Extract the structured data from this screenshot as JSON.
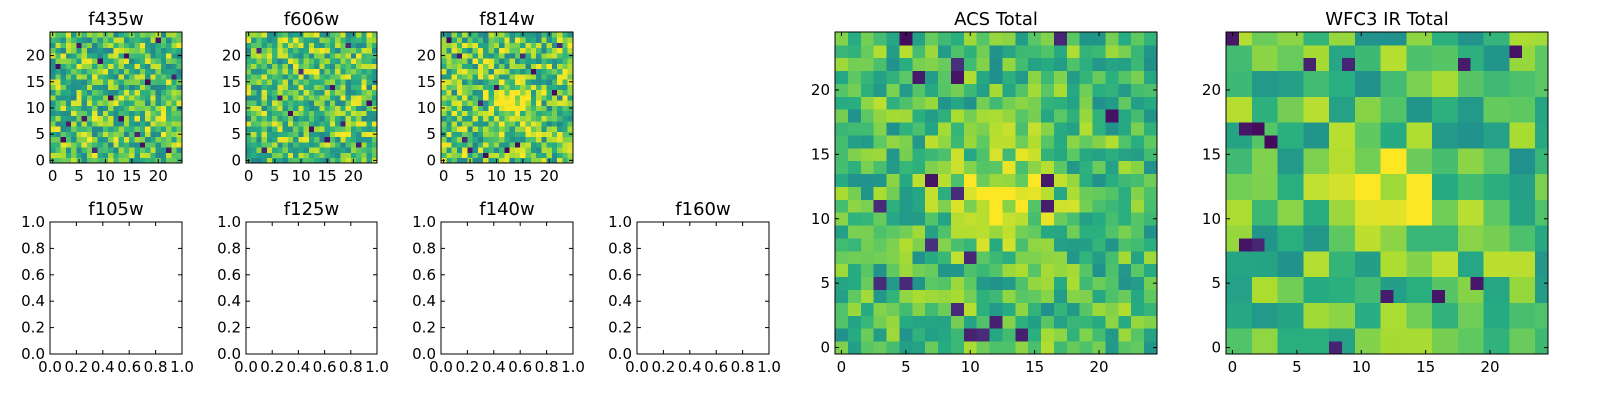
{
  "chart_data": [
    {
      "type": "heatmap",
      "title": "f435w",
      "grid_size": [
        25,
        25
      ],
      "xlim": [
        -0.5,
        24.5
      ],
      "ylim": [
        -0.5,
        24.5
      ],
      "xticks": [
        0,
        5,
        10,
        15,
        20
      ],
      "yticks": [
        0,
        5,
        10,
        15,
        20
      ],
      "colormap": "viridis",
      "pixel_block": 1,
      "seed": 11,
      "texture": "noise",
      "dark_points": [
        [
          3,
          7
        ],
        [
          2,
          4
        ],
        [
          14,
          20
        ],
        [
          6,
          8
        ],
        [
          9,
          19
        ],
        [
          22,
          2
        ],
        [
          5,
          22
        ],
        [
          17,
          3
        ],
        [
          11,
          12
        ],
        [
          20,
          23
        ],
        [
          16,
          5
        ],
        [
          23,
          16
        ],
        [
          8,
          2
        ],
        [
          1,
          18
        ],
        [
          13,
          8
        ],
        [
          18,
          15
        ]
      ]
    },
    {
      "type": "heatmap",
      "title": "f606w",
      "grid_size": [
        25,
        25
      ],
      "xlim": [
        -0.5,
        24.5
      ],
      "ylim": [
        -0.5,
        24.5
      ],
      "xticks": [
        0,
        5,
        10,
        15,
        20
      ],
      "yticks": [
        0,
        5,
        10,
        15,
        20
      ],
      "colormap": "viridis",
      "pixel_block": 1,
      "seed": 27,
      "texture": "noise",
      "dark_points": [
        [
          21,
          3
        ],
        [
          18,
          7
        ],
        [
          6,
          12
        ],
        [
          10,
          17
        ],
        [
          3,
          2
        ],
        [
          16,
          14
        ],
        [
          12,
          6
        ],
        [
          2,
          21
        ],
        [
          8,
          9
        ],
        [
          23,
          11
        ],
        [
          15,
          4
        ],
        [
          19,
          22
        ]
      ]
    },
    {
      "type": "heatmap",
      "title": "f814w",
      "grid_size": [
        25,
        25
      ],
      "xlim": [
        -0.5,
        24.5
      ],
      "ylim": [
        -0.5,
        24.5
      ],
      "xticks": [
        0,
        5,
        10,
        15,
        20
      ],
      "yticks": [
        0,
        5,
        10,
        15,
        20
      ],
      "colormap": "viridis",
      "pixel_block": 1,
      "seed": 43,
      "texture": "noise",
      "bright_center": [
        13,
        12
      ],
      "dark_points": [
        [
          3,
          20
        ],
        [
          5,
          2
        ],
        [
          8,
          1
        ],
        [
          10,
          14
        ],
        [
          1,
          23
        ],
        [
          12,
          2
        ],
        [
          15,
          20
        ],
        [
          14,
          3
        ],
        [
          4,
          4
        ],
        [
          21,
          13
        ],
        [
          17,
          17
        ],
        [
          7,
          11
        ],
        [
          22,
          22
        ]
      ]
    },
    {
      "type": "empty",
      "title": "f105w",
      "xlim": [
        0,
        1
      ],
      "ylim": [
        0,
        1
      ],
      "xticks": [
        "0.0",
        "0.2",
        "0.4",
        "0.6",
        "0.8",
        "1.0"
      ],
      "yticks": [
        "0.0",
        "0.2",
        "0.4",
        "0.6",
        "0.8",
        "1.0"
      ]
    },
    {
      "type": "empty",
      "title": "f125w",
      "xlim": [
        0,
        1
      ],
      "ylim": [
        0,
        1
      ],
      "xticks": [
        "0.0",
        "0.2",
        "0.4",
        "0.6",
        "0.8",
        "1.0"
      ],
      "yticks": [
        "0.0",
        "0.2",
        "0.4",
        "0.6",
        "0.8",
        "1.0"
      ]
    },
    {
      "type": "empty",
      "title": "f140w",
      "xlim": [
        0,
        1
      ],
      "ylim": [
        0,
        1
      ],
      "xticks": [
        "0.0",
        "0.2",
        "0.4",
        "0.6",
        "0.8",
        "1.0"
      ],
      "yticks": [
        "0.0",
        "0.2",
        "0.4",
        "0.6",
        "0.8",
        "1.0"
      ]
    },
    {
      "type": "empty",
      "title": "f160w",
      "xlim": [
        0,
        1
      ],
      "ylim": [
        0,
        1
      ],
      "xticks": [
        "0.0",
        "0.2",
        "0.4",
        "0.6",
        "0.8",
        "1.0"
      ],
      "yticks": [
        "0.0",
        "0.2",
        "0.4",
        "0.6",
        "0.8",
        "1.0"
      ]
    },
    {
      "type": "heatmap",
      "title": "ACS Total",
      "grid_size": [
        25,
        25
      ],
      "xlim": [
        -0.5,
        24.5
      ],
      "ylim": [
        -0.5,
        24.5
      ],
      "xticks": [
        0,
        5,
        10,
        15,
        20
      ],
      "yticks": [
        0,
        5,
        10,
        15,
        20
      ],
      "colormap": "viridis",
      "pixel_block": 1,
      "seed": 71,
      "texture": "smooth",
      "bright_center": [
        13,
        12
      ],
      "dark_points": [
        [
          5,
          24
        ],
        [
          9,
          22
        ],
        [
          17,
          24
        ],
        [
          9,
          21
        ],
        [
          16,
          13
        ],
        [
          9,
          12
        ],
        [
          3,
          11
        ],
        [
          7,
          8
        ],
        [
          10,
          7
        ],
        [
          3,
          5
        ],
        [
          5,
          5
        ],
        [
          9,
          3
        ],
        [
          10,
          1
        ],
        [
          11,
          1
        ],
        [
          14,
          1
        ],
        [
          12,
          2
        ],
        [
          16,
          11
        ],
        [
          6,
          21
        ],
        [
          21,
          18
        ],
        [
          7,
          13
        ]
      ]
    },
    {
      "type": "heatmap",
      "title": "WFC3 IR Total",
      "grid_size": [
        25,
        25
      ],
      "xlim": [
        -0.5,
        24.5
      ],
      "ylim": [
        -0.5,
        24.5
      ],
      "xticks": [
        0,
        5,
        10,
        15,
        20
      ],
      "yticks": [
        0,
        5,
        10,
        15,
        20
      ],
      "colormap": "viridis",
      "pixel_block": 2,
      "seed": 97,
      "texture": "smooth",
      "bright_center": [
        12,
        12
      ],
      "dark_points": [
        [
          1,
          17
        ],
        [
          2,
          17
        ],
        [
          3,
          16
        ],
        [
          1,
          8
        ],
        [
          2,
          8
        ],
        [
          16,
          4
        ],
        [
          19,
          5
        ],
        [
          12,
          4
        ],
        [
          8,
          0
        ],
        [
          0,
          24
        ],
        [
          6,
          22
        ],
        [
          9,
          22
        ],
        [
          18,
          22
        ],
        [
          22,
          23
        ]
      ]
    }
  ]
}
